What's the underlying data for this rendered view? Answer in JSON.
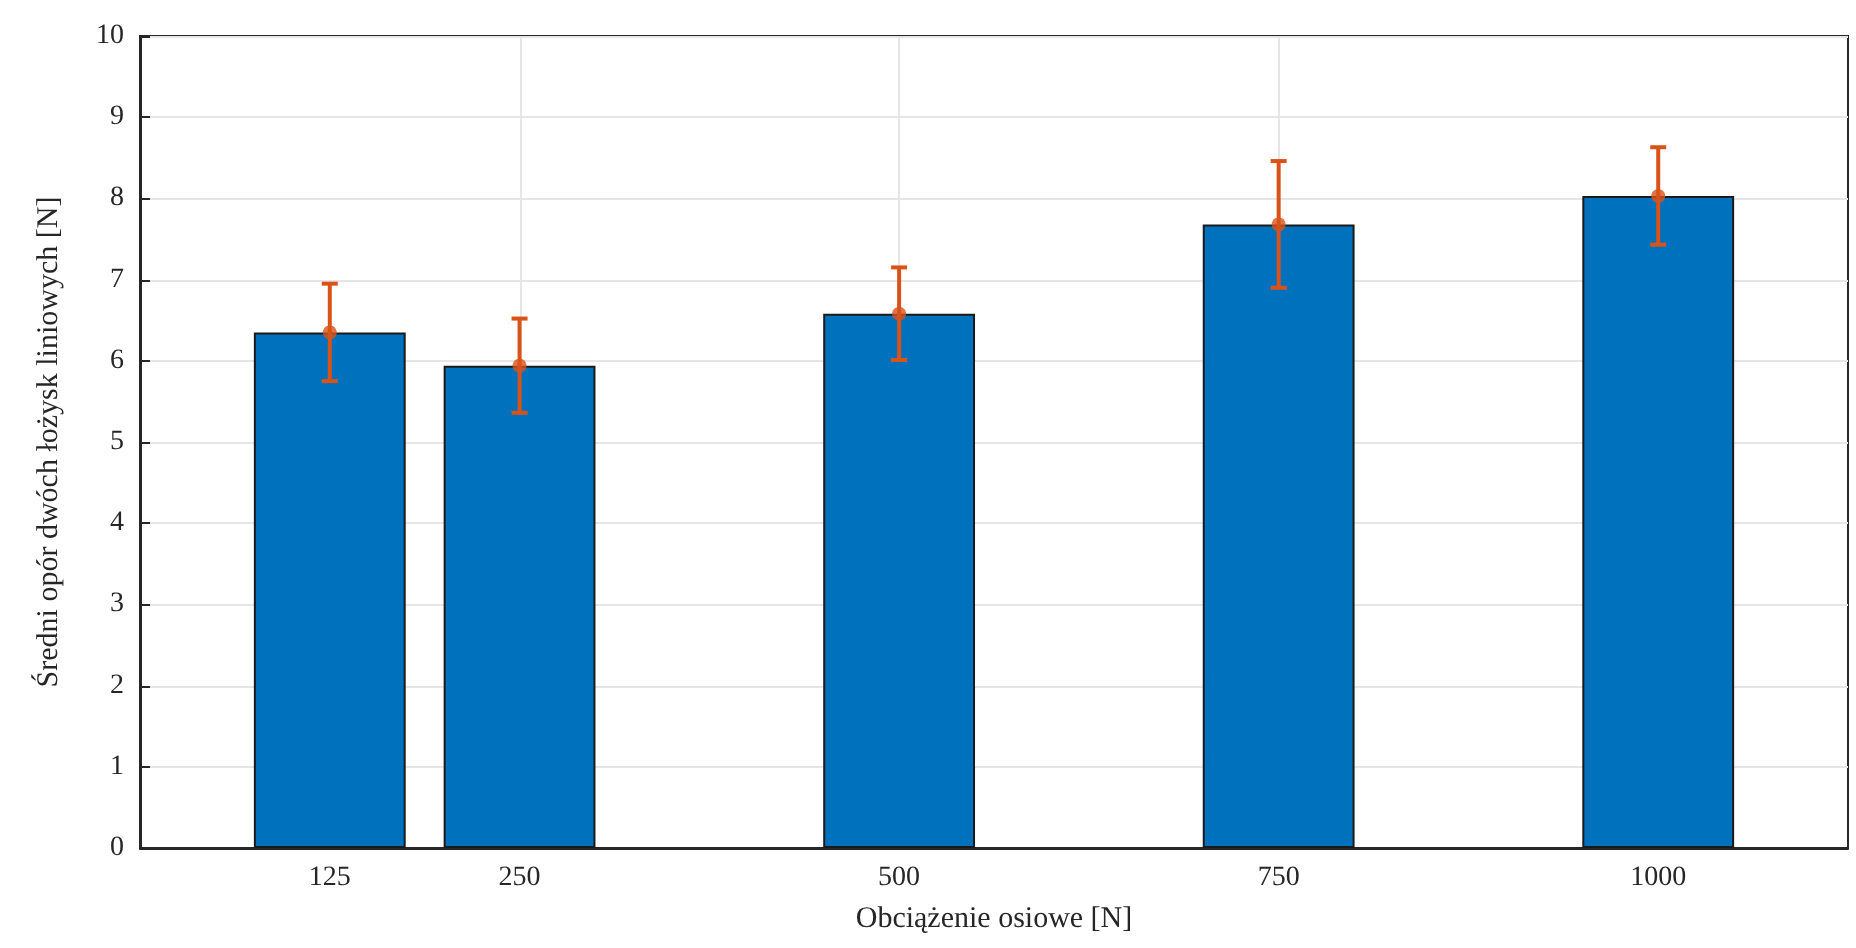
{
  "chart_data": {
    "type": "bar",
    "xlabel": "Obciążenie osiowe [N]",
    "ylabel": "Średni opór dwóch łożysk liniowych [N]",
    "x": [
      125,
      250,
      500,
      750,
      1000
    ],
    "series": [
      {
        "color": "#0072bd",
        "values": [
          6.35,
          5.94,
          6.58,
          7.68,
          8.03
        ]
      },
      {
        "type": "scatter",
        "color": "#d95319",
        "values": [
          6.35,
          5.94,
          6.58,
          7.68,
          8.03
        ],
        "errors": [
          0.6,
          0.58,
          0.57,
          0.78,
          0.6
        ]
      }
    ],
    "marker": "circle",
    "xlim": [
      0,
      1125
    ],
    "xticks": [
      125,
      250,
      500,
      750,
      1000
    ],
    "ylim": [
      0,
      10
    ],
    "yticks": [
      0,
      1,
      2,
      3,
      4,
      5,
      6,
      7,
      8,
      9,
      10
    ],
    "grid": true
  }
}
